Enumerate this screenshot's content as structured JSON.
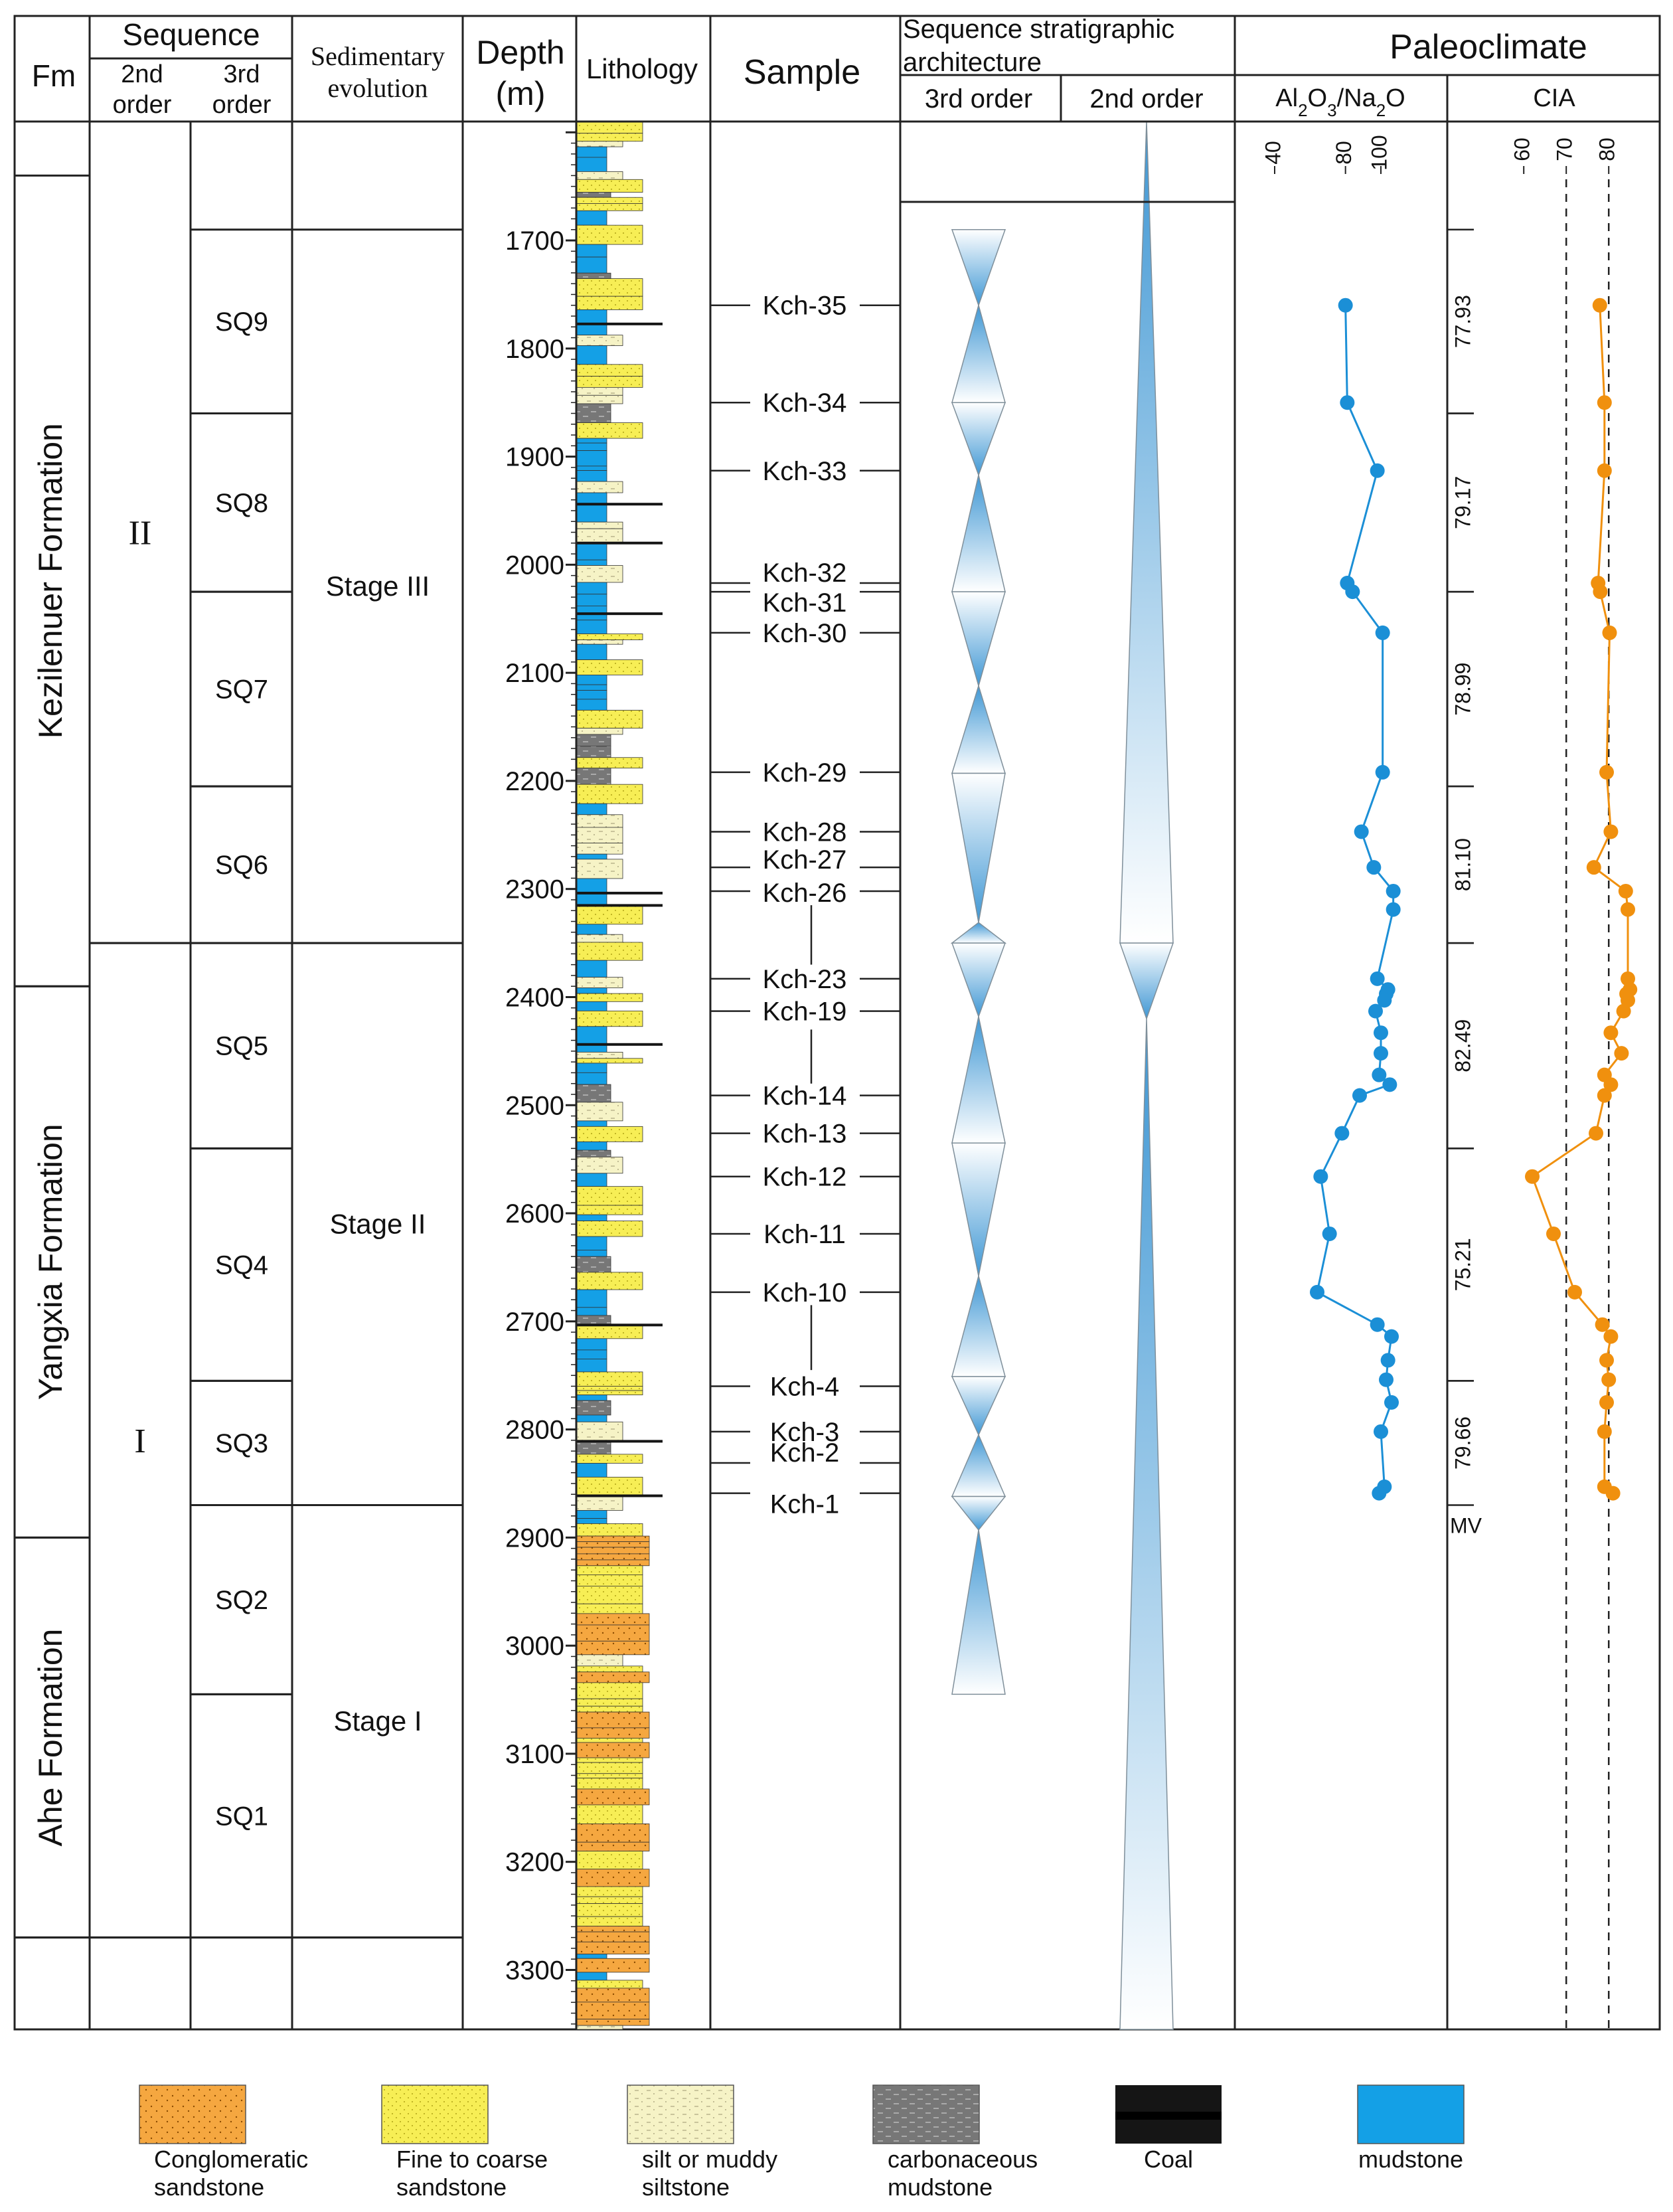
{
  "header": {
    "fm": "Fm",
    "sequence": "Sequence",
    "second_order": [
      "2nd",
      "order"
    ],
    "third_order": [
      "3rd",
      "order"
    ],
    "sed_evolution": [
      "Sedimentary",
      "evolution"
    ],
    "depth": [
      "Depth",
      "(m)"
    ],
    "lithology": "Lithology",
    "sample": "Sample",
    "seq_arch": [
      "Sequence stratigraphic",
      "architecture"
    ],
    "arch_3rd": "3rd order",
    "arch_2nd": "2nd order",
    "paleoclimate": "Paleoclimate",
    "ratio_label": "Al2O3/Na2O",
    "cia_label": "CIA"
  },
  "formations": [
    {
      "name": "Kezilenuer Formation",
      "top": 1640,
      "base": 2390
    },
    {
      "name": "Yangxia Formation",
      "top": 2390,
      "base": 2900
    },
    {
      "name": "Ahe Formation",
      "top": 2900,
      "base": 3270
    }
  ],
  "second_order_sequences": [
    {
      "name": "II",
      "top": 1590,
      "base": 2350
    },
    {
      "name": "I",
      "top": 2350,
      "base": 3270
    }
  ],
  "third_order_sequences": [
    {
      "name": "SQ9",
      "top": 1690,
      "base": 1860
    },
    {
      "name": "SQ8",
      "top": 1860,
      "base": 2025
    },
    {
      "name": "SQ7",
      "top": 2025,
      "base": 2205
    },
    {
      "name": "SQ6",
      "top": 2205,
      "base": 2350
    },
    {
      "name": "SQ5",
      "top": 2350,
      "base": 2540
    },
    {
      "name": "SQ4",
      "top": 2540,
      "base": 2755
    },
    {
      "name": "SQ3",
      "top": 2755,
      "base": 2870
    },
    {
      "name": "SQ2",
      "top": 2870,
      "base": 3045
    },
    {
      "name": "SQ1",
      "top": 3045,
      "base": 3270
    }
  ],
  "stages": [
    {
      "name": "Stage III",
      "top": 1690,
      "base": 2350
    },
    {
      "name": "Stage II",
      "top": 2350,
      "base": 2870
    },
    {
      "name": "Stage I",
      "top": 2870,
      "base": 3270
    }
  ],
  "depth_axis": {
    "min": 1590,
    "max": 3355,
    "ticks": [
      1700,
      1800,
      1900,
      2000,
      2100,
      2200,
      2300,
      2400,
      2500,
      2600,
      2700,
      2800,
      2900,
      3000,
      3100,
      3200,
      3300
    ]
  },
  "samples": [
    {
      "label": "Kch-35",
      "depth": 1760
    },
    {
      "label": "Kch-34",
      "depth": 1850
    },
    {
      "label": "Kch-33",
      "depth": 1913
    },
    {
      "label": "Kch-32",
      "depth": 2017
    },
    {
      "label": "Kch-31",
      "depth": 2025
    },
    {
      "label": "Kch-30",
      "depth": 2063
    },
    {
      "label": "Kch-29",
      "depth": 2192
    },
    {
      "label": "Kch-28",
      "depth": 2247
    },
    {
      "label": "Kch-27",
      "depth": 2280
    },
    {
      "label": "Kch-26",
      "depth": 2302
    },
    {
      "label": "Kch-23",
      "depth": 2383
    },
    {
      "label": "Kch-19",
      "depth": 2413
    },
    {
      "label": "Kch-14",
      "depth": 2491
    },
    {
      "label": "Kch-13",
      "depth": 2526
    },
    {
      "label": "Kch-12",
      "depth": 2566
    },
    {
      "label": "Kch-11",
      "depth": 2619
    },
    {
      "label": "Kch-10",
      "depth": 2673
    },
    {
      "label": "Kch-4",
      "depth": 2760
    },
    {
      "label": "Kch-3",
      "depth": 2802
    },
    {
      "label": "Kch-2",
      "depth": 2831
    },
    {
      "label": "Kch-1",
      "depth": 2859
    }
  ],
  "third_order_cycles": [
    {
      "top": 1690,
      "bottom": 1760,
      "kind": "down"
    },
    {
      "top": 1760,
      "bottom": 1850,
      "kind": "up"
    },
    {
      "top": 1850,
      "bottom": 1917,
      "kind": "down"
    },
    {
      "top": 1917,
      "bottom": 2025,
      "kind": "up"
    },
    {
      "top": 2025,
      "bottom": 2112,
      "kind": "down"
    },
    {
      "top": 2112,
      "bottom": 2193,
      "kind": "up"
    },
    {
      "top": 2193,
      "bottom": 2331,
      "kind": "down"
    },
    {
      "top": 2331,
      "bottom": 2350,
      "kind": "up"
    },
    {
      "top": 2350,
      "bottom": 2418,
      "kind": "down"
    },
    {
      "top": 2418,
      "bottom": 2535,
      "kind": "up"
    },
    {
      "top": 2535,
      "bottom": 2658,
      "kind": "down"
    },
    {
      "top": 2658,
      "bottom": 2751,
      "kind": "up"
    },
    {
      "top": 2751,
      "bottom": 2805,
      "kind": "down"
    },
    {
      "top": 2805,
      "bottom": 2862,
      "kind": "up"
    },
    {
      "top": 2862,
      "bottom": 2893,
      "kind": "down"
    },
    {
      "top": 2893,
      "bottom": 3045,
      "kind": "up"
    }
  ],
  "second_order_cycles": [
    {
      "top": 1590,
      "bottom": 2350,
      "kind": "up"
    },
    {
      "top": 2350,
      "bottom": 2420,
      "kind": "down"
    },
    {
      "top": 2420,
      "bottom": 3355,
      "kind": "up"
    }
  ],
  "ratio_axis": {
    "min": 25,
    "max": 130,
    "ticks": [
      40,
      80,
      100
    ]
  },
  "cia_axis": {
    "min": 42,
    "max": 92,
    "ticks": [
      60,
      70,
      80
    ],
    "dashed": [
      70,
      80
    ],
    "mv_label": "MV"
  },
  "cia_mean_values": [
    {
      "label": "77.93",
      "top": 1690,
      "base": 1860
    },
    {
      "label": "79.17",
      "top": 1860,
      "base": 2025
    },
    {
      "label": "78.99",
      "top": 2025,
      "base": 2205
    },
    {
      "label": "81.10",
      "top": 2205,
      "base": 2350
    },
    {
      "label": "82.49",
      "top": 2350,
      "base": 2540
    },
    {
      "label": "75.21",
      "top": 2540,
      "base": 2755
    },
    {
      "label": "79.66",
      "top": 2755,
      "base": 2870
    }
  ],
  "chart_data": {
    "type": "line",
    "x_axis": "Depth (m)",
    "series": [
      {
        "name": "Al2O3/Na2O",
        "color": "#1b8fd6",
        "depths": [
          1760,
          1850,
          1913,
          2017,
          2025,
          2063,
          2192,
          2247,
          2280,
          2302,
          2319,
          2383,
          2393,
          2397,
          2403,
          2413,
          2433,
          2452,
          2472,
          2481,
          2491,
          2526,
          2566,
          2619,
          2673,
          2703,
          2714,
          2736,
          2754,
          2775,
          2802,
          2853,
          2859
        ],
        "values": [
          80,
          81,
          98,
          81,
          84,
          101,
          101,
          89,
          96,
          107,
          107,
          98,
          104,
          103,
          102,
          97,
          100,
          100,
          99,
          105,
          88,
          78,
          66,
          71,
          64,
          98,
          106,
          104,
          103,
          106,
          100,
          102,
          99
        ]
      },
      {
        "name": "CIA",
        "color": "#f0900e",
        "depths": [
          1760,
          1850,
          1913,
          2017,
          2025,
          2063,
          2192,
          2247,
          2280,
          2302,
          2319,
          2383,
          2393,
          2397,
          2403,
          2413,
          2433,
          2452,
          2472,
          2481,
          2491,
          2526,
          2566,
          2619,
          2673,
          2703,
          2714,
          2736,
          2754,
          2775,
          2802,
          2853,
          2859
        ],
        "values": [
          77.9,
          79.0,
          79.0,
          77.5,
          78.0,
          80.2,
          79.5,
          80.5,
          76.5,
          84.0,
          84.5,
          84.5,
          85.0,
          84.2,
          84.5,
          83.5,
          80.5,
          83.0,
          79.0,
          80.5,
          79.0,
          77.0,
          62.0,
          67.0,
          72.0,
          78.5,
          80.5,
          79.5,
          80.0,
          79.5,
          79.0,
          79.0,
          81.0
        ]
      }
    ]
  },
  "legend": [
    {
      "label": [
        "Conglomeratic",
        "sandstone"
      ],
      "kind": "cong"
    },
    {
      "label": [
        "Fine to coarse",
        "sandstone"
      ],
      "kind": "sand"
    },
    {
      "label": [
        "silt or muddy",
        "siltstone"
      ],
      "kind": "silt"
    },
    {
      "label": [
        "carbonaceous",
        "mudstone"
      ],
      "kind": "carb"
    },
    {
      "label": [
        "Coal"
      ],
      "kind": "coal"
    },
    {
      "label": [
        "mudstone"
      ],
      "kind": "mud"
    }
  ],
  "colors": {
    "ratio": "#1b8fd6",
    "cia": "#f0900e",
    "mudstone": "#14a0e6",
    "sandstone": "#f7ee55",
    "conglomeratic": "#f5a740",
    "silt": "#f6f3c6",
    "carbonaceous": "#777777",
    "coal": "#151515",
    "cycle": "#6fb3dd"
  }
}
